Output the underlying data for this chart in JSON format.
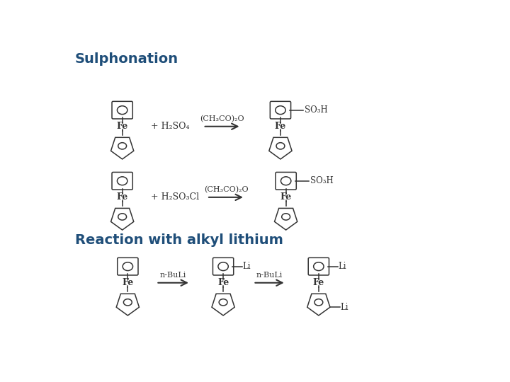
{
  "title1": "Sulphonation",
  "title2": "Reaction with alkyl lithium",
  "title_color": "#1F4E79",
  "background_color": "#ffffff",
  "text_color": "#333333",
  "fe_label": "Fe",
  "li_label": "Li",
  "reaction1_reagent": "+ H₂SO₄",
  "reaction1_arrow_label": "(CH₃CO)₂O",
  "reaction1_product_sub": "SO₃H",
  "reaction2_reagent": "+ H₂SO₃Cl",
  "reaction2_arrow_label": "(CH₃CO)₂O",
  "reaction2_product_sub": "SO₃H",
  "reaction3_arrow1": "n-BuLi",
  "reaction3_arrow2": "n-BuLi",
  "top_ring_r": 20,
  "bot_ring_r": 20,
  "fe_fontsize": 9,
  "label_fontsize": 8.5,
  "reagent_fontsize": 9,
  "arrow_label_fontsize": 8,
  "title1_fontsize": 14,
  "title2_fontsize": 14
}
